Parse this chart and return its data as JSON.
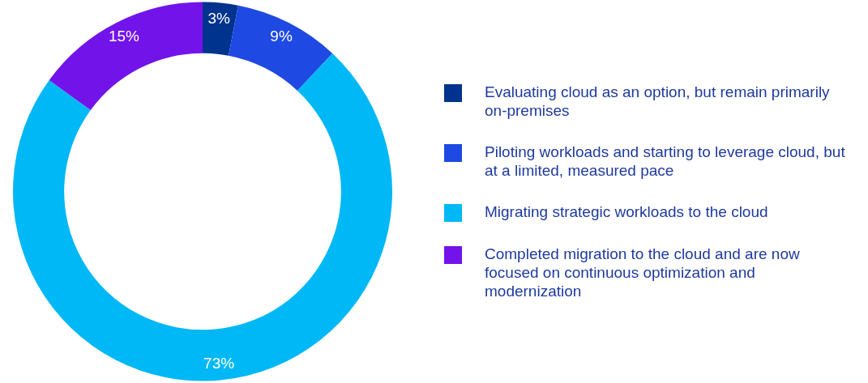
{
  "chart_data": {
    "type": "donut",
    "categories": [
      "Evaluating cloud as an option, but remain primarily on-premises",
      "Piloting workloads and starting to leverage cloud, but at a limited, measured pace",
      "Migrating strategic workloads to the cloud",
      "Completed migration to the cloud and are now focused on continuous optimization and modernization"
    ],
    "values": [
      3,
      9,
      73,
      15
    ],
    "colors": [
      "#00338d",
      "#1e49e2",
      "#00b8f5",
      "#7213ea"
    ],
    "value_labels": [
      "3%",
      "9%",
      "73%",
      "15%"
    ],
    "legend": "right"
  }
}
